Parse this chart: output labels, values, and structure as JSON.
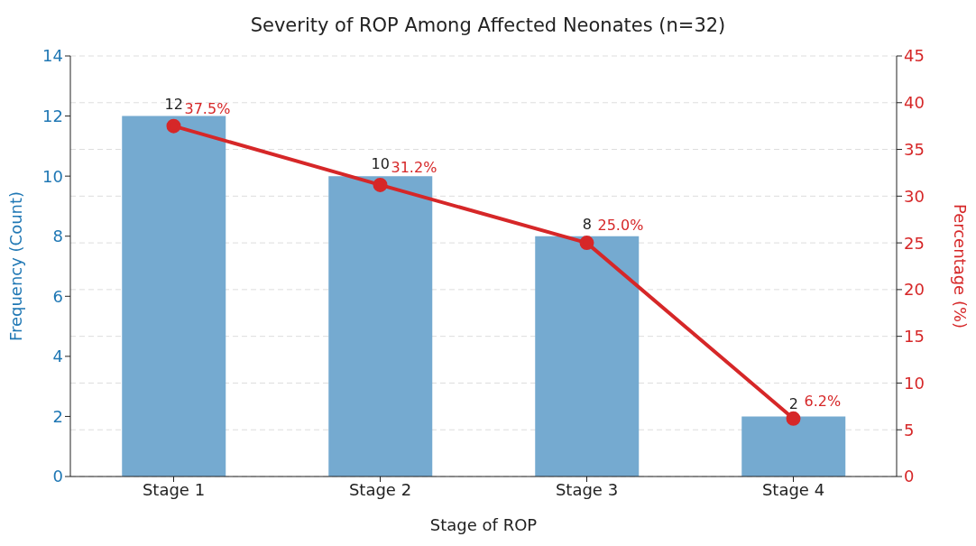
{
  "chart_data": {
    "type": "bar",
    "title": "Severity of ROP Among Affected Neonates (n=32)",
    "xlabel": "Stage of ROP",
    "ylabel": "Frequency (Count)",
    "y2label": "Percentage (%)",
    "categories": [
      "Stage 1",
      "Stage 2",
      "Stage 3",
      "Stage 4"
    ],
    "series": [
      {
        "color": "#75aad0",
        "values": [
          12,
          10,
          8,
          2
        ],
        "value_labels": [
          "12",
          "10",
          "8",
          "2"
        ]
      },
      {
        "type": "line",
        "axis": "y2",
        "color": "#d62728",
        "values": [
          37.5,
          31.2,
          25.0,
          6.2
        ],
        "value_labels": [
          "37.5%",
          "31.2%",
          "25.0%",
          "6.2%"
        ]
      }
    ],
    "ylim": [
      0,
      14
    ],
    "yticks": [
      0,
      2,
      4,
      6,
      8,
      10,
      12,
      14
    ],
    "y2lim": [
      0,
      45
    ],
    "y2ticks": [
      0,
      5,
      10,
      15,
      20,
      25,
      30,
      35,
      40,
      45
    ],
    "grid": "y",
    "marker": "circle",
    "line_style": "solid"
  }
}
